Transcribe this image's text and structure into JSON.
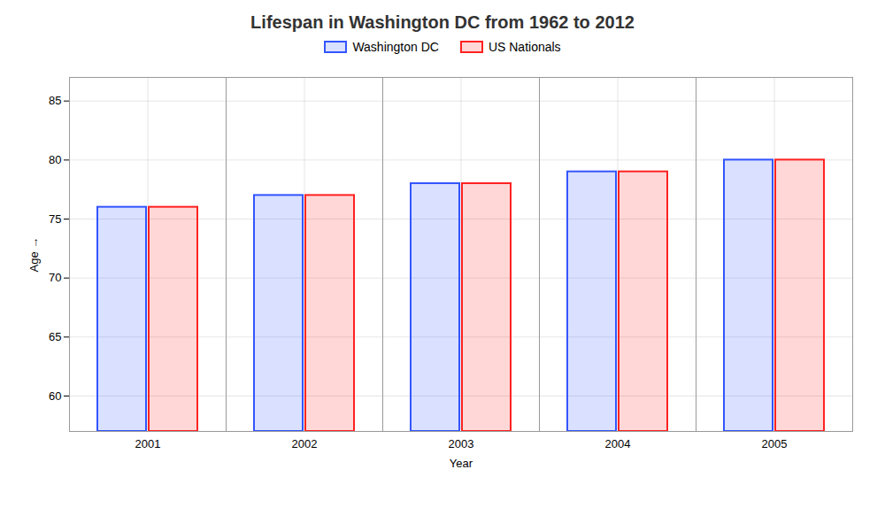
{
  "chart_data": {
    "type": "bar",
    "title": "Lifespan in Washington DC from 1962 to 2012",
    "xlabel": "Year",
    "ylabel": "Age",
    "categories": [
      "2001",
      "2002",
      "2003",
      "2004",
      "2005"
    ],
    "series": [
      {
        "name": "Washington DC",
        "color": "#3355ff",
        "values": [
          76,
          77,
          78,
          79,
          80
        ]
      },
      {
        "name": "US Nationals",
        "color": "#ff2222",
        "values": [
          76,
          77,
          78,
          79,
          80
        ]
      }
    ],
    "ylim": [
      57,
      87
    ],
    "yticks": [
      60,
      65,
      70,
      75,
      80,
      85
    ],
    "grid": true,
    "legend": "top"
  }
}
